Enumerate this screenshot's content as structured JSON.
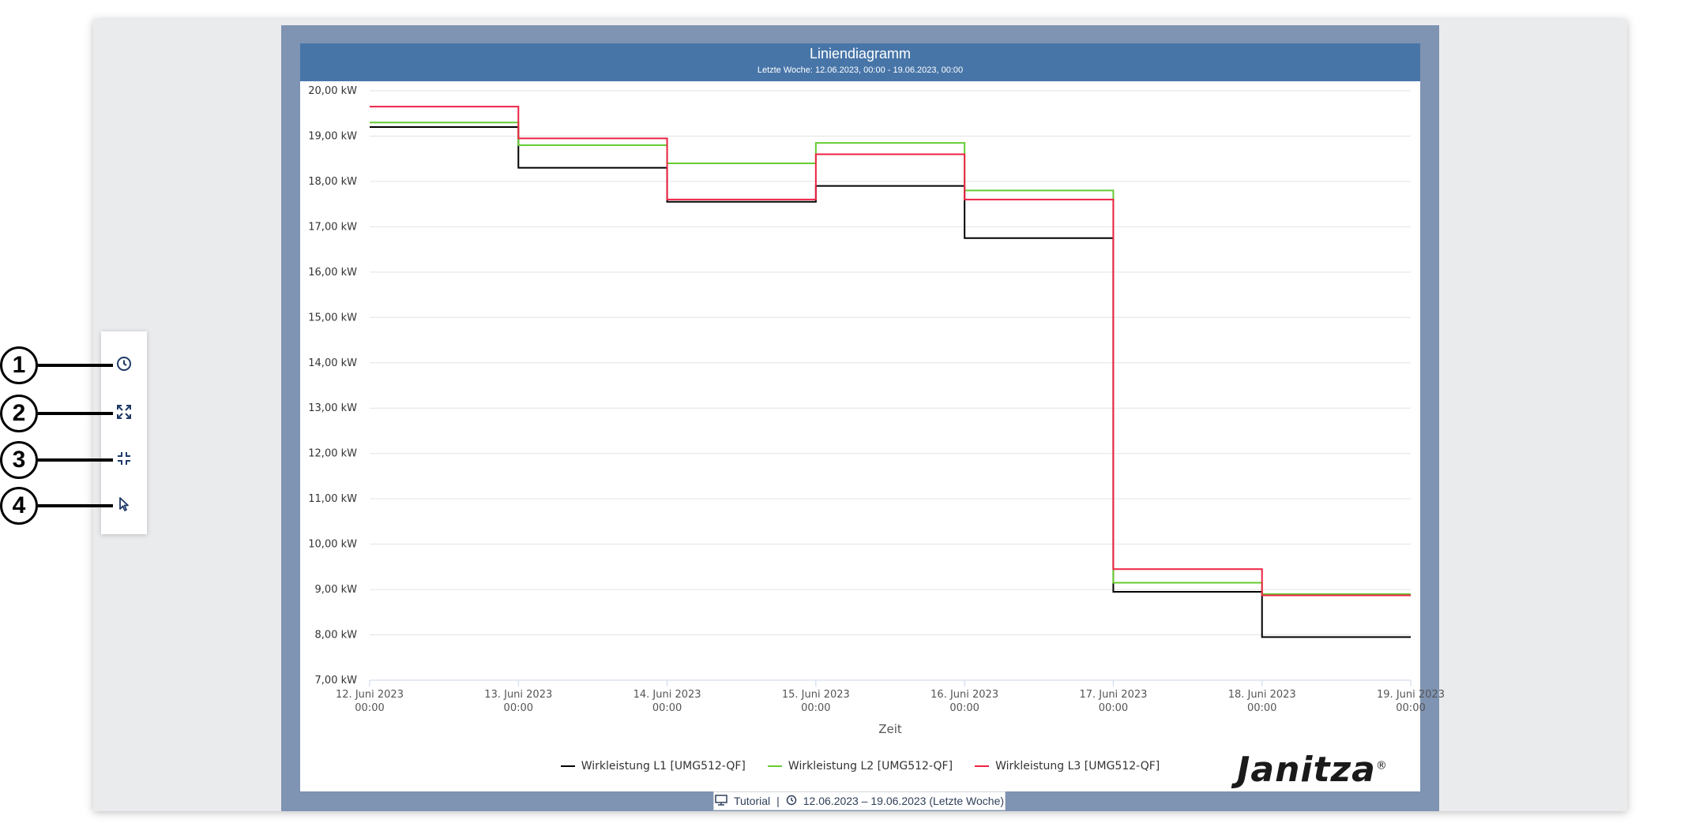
{
  "chart_header": {
    "title": "Liniendiagramm",
    "subtitle": "Letzte Woche: 12.06.2023, 00:00 - 19.06.2023, 00:00"
  },
  "colors": {
    "header": "#4775a8",
    "dashboard_bg": "#7f93b2",
    "series_l1": "#000000",
    "series_l2": "#66cc33",
    "series_l3": "#ee2244"
  },
  "chart_data": {
    "type": "line",
    "step": true,
    "xlabel": "Zeit",
    "ylabel": "",
    "ylim": [
      7,
      20
    ],
    "y_unit_suffix": " kW",
    "yticks": [
      "20,00 kW",
      "19,00 kW",
      "18,00 kW",
      "17,00 kW",
      "16,00 kW",
      "15,00 kW",
      "14,00 kW",
      "13,00 kW",
      "12,00 kW",
      "11,00 kW",
      "10,00 kW",
      "9,00 kW",
      "8,00 kW",
      "7,00 kW"
    ],
    "xticks": [
      {
        "date": "12. Juni 2023",
        "time": "00:00"
      },
      {
        "date": "13. Juni 2023",
        "time": "00:00"
      },
      {
        "date": "14. Juni 2023",
        "time": "00:00"
      },
      {
        "date": "15. Juni 2023",
        "time": "00:00"
      },
      {
        "date": "16. Juni 2023",
        "time": "00:00"
      },
      {
        "date": "17. Juni 2023",
        "time": "00:00"
      },
      {
        "date": "18. Juni 2023",
        "time": "00:00"
      },
      {
        "date": "19. Juni 2023",
        "time": "00:00"
      }
    ],
    "series": [
      {
        "name": "Wirkleistung L1 [UMG512-QF]",
        "color": "#000000",
        "values": [
          19.2,
          18.3,
          17.55,
          17.9,
          16.75,
          8.95,
          7.95
        ]
      },
      {
        "name": "Wirkleistung L2 [UMG512-QF]",
        "color": "#66cc33",
        "values": [
          19.3,
          18.8,
          18.4,
          18.85,
          17.8,
          9.15,
          8.9
        ]
      },
      {
        "name": "Wirkleistung L3 [UMG512-QF]",
        "color": "#ee2244",
        "values": [
          19.65,
          18.95,
          17.6,
          18.6,
          17.6,
          9.45,
          8.87
        ]
      }
    ],
    "grid": true,
    "legend": "bottom-center"
  },
  "logo": {
    "text": "Janitza",
    "mark": "®"
  },
  "status_bar": {
    "dashboard": "Tutorial",
    "separator": "|",
    "period": "12.06.2023 – 19.06.2023 (Letzte Woche)",
    "dashboard_icon": "presentation-icon",
    "period_icon": "clock-icon"
  },
  "toolbar": {
    "items": [
      {
        "icon": "clock-icon",
        "callout": "1"
      },
      {
        "icon": "expand-icon",
        "callout": "2"
      },
      {
        "icon": "collapse-icon",
        "callout": "3"
      },
      {
        "icon": "cursor-icon",
        "callout": "4"
      }
    ]
  }
}
